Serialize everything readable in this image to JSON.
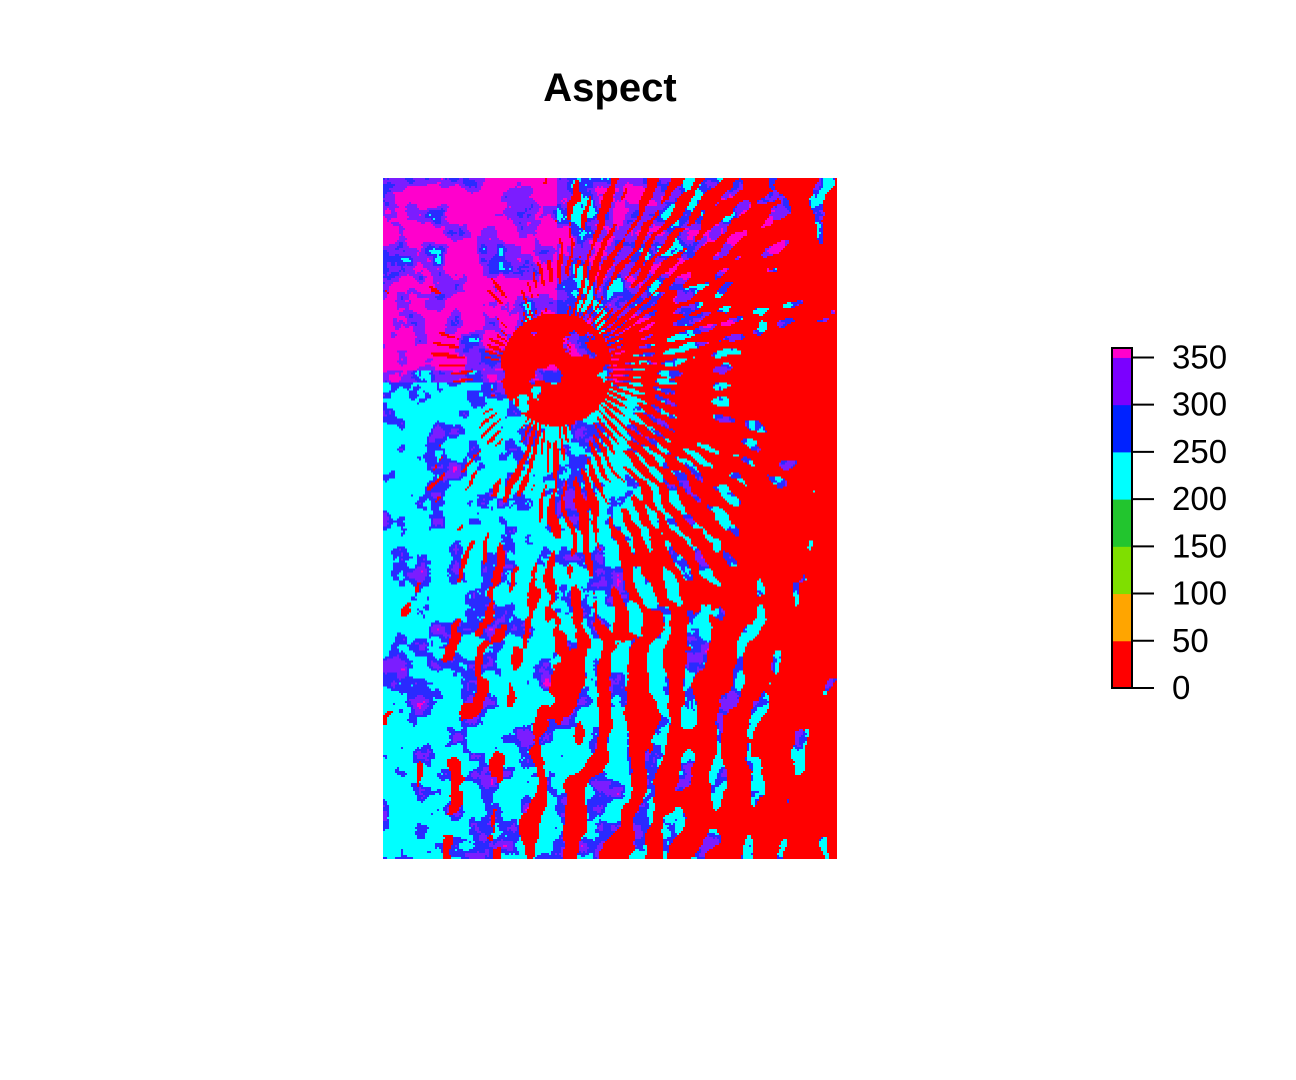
{
  "chart_data": {
    "type": "heatmap",
    "title": "Aspect",
    "legend": {
      "position": "right",
      "breaks": [
        0,
        25,
        50,
        75,
        100,
        125,
        150,
        175,
        200,
        225,
        250,
        275,
        300,
        325,
        350,
        360
      ],
      "colors": [
        "#ff0000",
        "#ff0000",
        "#ffa500",
        "#ffa500",
        "#7fdf00",
        "#7fdf00",
        "#22c52e",
        "#22c52e",
        "#00ffff",
        "#00ffff",
        "#0022ff",
        "#0022ff",
        "#7b00ff",
        "#7b00ff",
        "#ff00cc"
      ],
      "tick_values": [
        0,
        50,
        100,
        150,
        200,
        250,
        300,
        350
      ],
      "tick_labels": [
        "0",
        "50",
        "100",
        "150",
        "200",
        "250",
        "300",
        "350"
      ],
      "range": [
        0,
        360
      ]
    },
    "raster_note_colors": {
      "north_facing": "#ff0000",
      "south_facing": "#00ffff",
      "southwest_facing": "#2a2aff",
      "west_facing": "#7b1dff",
      "northwest_facing": "#ff00cc"
    }
  }
}
